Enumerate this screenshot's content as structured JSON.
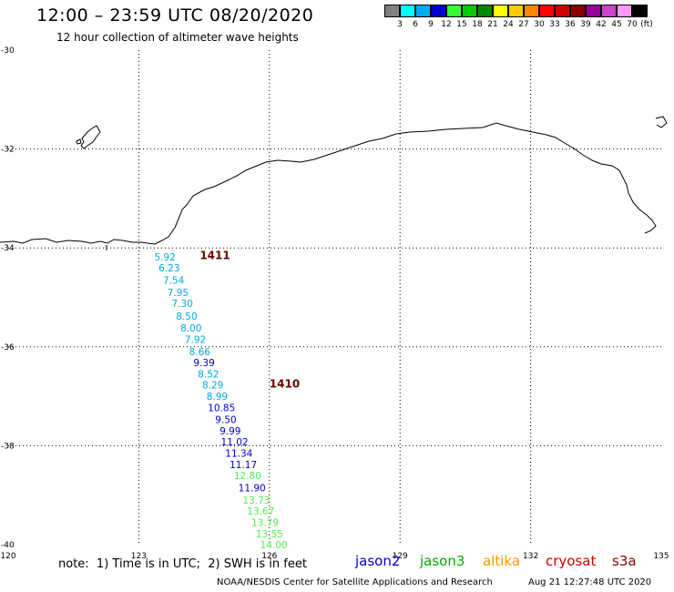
{
  "header": {
    "title": "12:00 – 23:59 UTC 08/20/2020",
    "subtitle": "12 hour collection of altimeter wave heights"
  },
  "scale": {
    "unit": "(ft)",
    "labels": [
      "3",
      "6",
      "9",
      "12",
      "15",
      "18",
      "21",
      "24",
      "27",
      "30",
      "33",
      "36",
      "39",
      "42",
      "45",
      "70"
    ],
    "colors": [
      "#808080",
      "#00ffff",
      "#00aaee",
      "#0000cc",
      "#33ff33",
      "#00cc00",
      "#008800",
      "#ffff00",
      "#ffcc00",
      "#ff8800",
      "#ff0000",
      "#cc0000",
      "#880000",
      "#990099",
      "#cc44cc",
      "#ff99ff",
      "#000000"
    ]
  },
  "axes": {
    "lon_ticks": [
      "120",
      "123",
      "126",
      "129",
      "132",
      "135"
    ],
    "lat_ticks": [
      "-30",
      "-32",
      "-34",
      "-36",
      "-38",
      "-40"
    ]
  },
  "passes": [
    {
      "label": "1411",
      "lon": 124.4,
      "lat": -34.15
    },
    {
      "label": "1410",
      "lon": 126.0,
      "lat": -36.75
    }
  ],
  "observations": [
    {
      "value": "5.92",
      "lon": 123.6,
      "lat": -34.18,
      "color": "#00aadd"
    },
    {
      "value": "6.23",
      "lon": 123.7,
      "lat": -34.4,
      "color": "#00aadd"
    },
    {
      "value": "7.54",
      "lon": 123.8,
      "lat": -34.65,
      "color": "#00aadd"
    },
    {
      "value": "7.95",
      "lon": 123.9,
      "lat": -34.9,
      "color": "#00aadd"
    },
    {
      "value": "7.30",
      "lon": 124.0,
      "lat": -35.12,
      "color": "#00aadd"
    },
    {
      "value": "8.50",
      "lon": 124.1,
      "lat": -35.38,
      "color": "#00aadd"
    },
    {
      "value": "8.00",
      "lon": 124.2,
      "lat": -35.62,
      "color": "#00aadd"
    },
    {
      "value": "7.92",
      "lon": 124.3,
      "lat": -35.85,
      "color": "#00aadd"
    },
    {
      "value": "8.66",
      "lon": 124.4,
      "lat": -36.1,
      "color": "#00aadd"
    },
    {
      "value": "9.39",
      "lon": 124.5,
      "lat": -36.32,
      "color": "#0000cc"
    },
    {
      "value": "8.52",
      "lon": 124.6,
      "lat": -36.55,
      "color": "#00aadd"
    },
    {
      "value": "8.29",
      "lon": 124.7,
      "lat": -36.77,
      "color": "#00aadd"
    },
    {
      "value": "8.99",
      "lon": 124.8,
      "lat": -37.0,
      "color": "#00aadd"
    },
    {
      "value": "10.85",
      "lon": 124.9,
      "lat": -37.23,
      "color": "#0000cc"
    },
    {
      "value": "9.50",
      "lon": 125.0,
      "lat": -37.47,
      "color": "#0000cc"
    },
    {
      "value": "9.99",
      "lon": 125.1,
      "lat": -37.7,
      "color": "#0000cc"
    },
    {
      "value": "11.02",
      "lon": 125.2,
      "lat": -37.92,
      "color": "#0000cc"
    },
    {
      "value": "11.34",
      "lon": 125.3,
      "lat": -38.15,
      "color": "#0000cc"
    },
    {
      "value": "11.17",
      "lon": 125.4,
      "lat": -38.38,
      "color": "#0000cc"
    },
    {
      "value": "12.80",
      "lon": 125.5,
      "lat": -38.6,
      "color": "#55ee55"
    },
    {
      "value": "11.90",
      "lon": 125.6,
      "lat": -38.85,
      "color": "#0000cc"
    },
    {
      "value": "13.73",
      "lon": 125.7,
      "lat": -39.1,
      "color": "#55ee55"
    },
    {
      "value": "13.67",
      "lon": 125.8,
      "lat": -39.32,
      "color": "#55ee55"
    },
    {
      "value": "13.79",
      "lon": 125.9,
      "lat": -39.55,
      "color": "#55ee55"
    },
    {
      "value": "13.55",
      "lon": 126.0,
      "lat": -39.78,
      "color": "#55ee55"
    },
    {
      "value": "14.00",
      "lon": 126.1,
      "lat": -40.0,
      "color": "#55ee55"
    }
  ],
  "footer": {
    "note": "note:  1) Time is in UTC;  2) SWH is in feet",
    "legend": [
      {
        "name": "jason2",
        "color": "#0000cc"
      },
      {
        "name": "jason3",
        "color": "#00aa00"
      },
      {
        "name": "altika",
        "color": "#ff9900"
      },
      {
        "name": "cryosat",
        "color": "#cc0000"
      },
      {
        "name": "s3a",
        "color": "#880000"
      }
    ],
    "credit": "NOAA/NESDIS Center for Satellite Applications and Research",
    "timestamp": "Aug 21 12:27:48 UTC 2020"
  }
}
